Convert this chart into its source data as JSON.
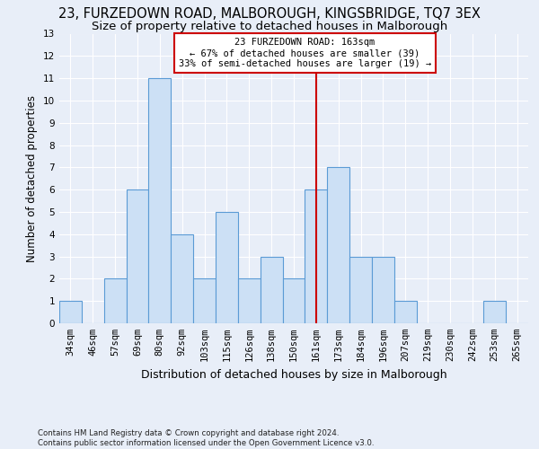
{
  "title": "23, FURZEDOWN ROAD, MALBOROUGH, KINGSBRIDGE, TQ7 3EX",
  "subtitle": "Size of property relative to detached houses in Malborough",
  "xlabel": "Distribution of detached houses by size in Malborough",
  "ylabel": "Number of detached properties",
  "categories": [
    "34sqm",
    "46sqm",
    "57sqm",
    "69sqm",
    "80sqm",
    "92sqm",
    "103sqm",
    "115sqm",
    "126sqm",
    "138sqm",
    "150sqm",
    "161sqm",
    "173sqm",
    "184sqm",
    "196sqm",
    "207sqm",
    "219sqm",
    "230sqm",
    "242sqm",
    "253sqm",
    "265sqm"
  ],
  "values": [
    1,
    0,
    2,
    6,
    11,
    4,
    2,
    5,
    2,
    3,
    2,
    6,
    7,
    3,
    3,
    1,
    0,
    0,
    0,
    1,
    0
  ],
  "bar_color": "#cce0f5",
  "bar_edge_color": "#5b9bd5",
  "vline_x": 11,
  "vline_color": "#cc0000",
  "ylim": [
    0,
    13
  ],
  "yticks": [
    0,
    1,
    2,
    3,
    4,
    5,
    6,
    7,
    8,
    9,
    10,
    11,
    12,
    13
  ],
  "annotation_title": "23 FURZEDOWN ROAD: 163sqm",
  "annotation_line1": "← 67% of detached houses are smaller (39)",
  "annotation_line2": "33% of semi-detached houses are larger (19) →",
  "annotation_box_color": "#cc0000",
  "footer1": "Contains HM Land Registry data © Crown copyright and database right 2024.",
  "footer2": "Contains public sector information licensed under the Open Government Licence v3.0.",
  "background_color": "#e8eef8",
  "grid_color": "#ffffff",
  "title_fontsize": 10.5,
  "subtitle_fontsize": 9.5,
  "xlabel_fontsize": 9,
  "ylabel_fontsize": 8.5,
  "tick_fontsize": 7.5,
  "annotation_fontsize": 7.5,
  "footer_fontsize": 6.2
}
